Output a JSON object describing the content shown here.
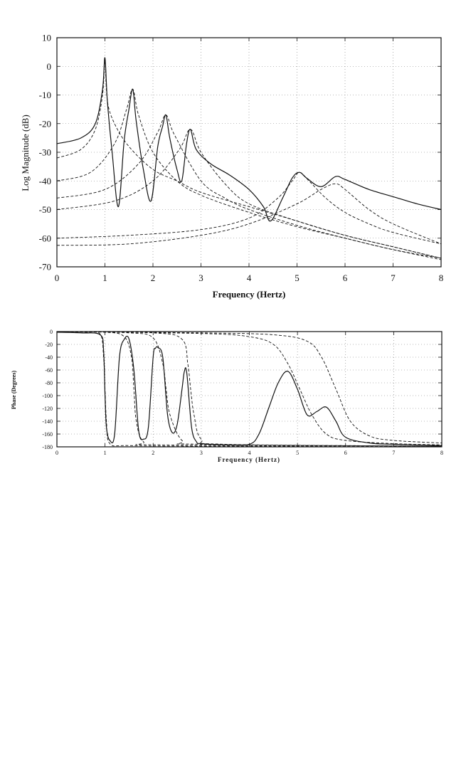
{
  "chart_data": [
    {
      "type": "line",
      "xlabel": "Frequency  (Hertz)",
      "ylabel": "Log Magnitude  (dB)",
      "xlim": [
        0,
        8
      ],
      "ylim": [
        -70,
        10
      ],
      "xticks": [
        "0",
        "1",
        "2",
        "3",
        "4",
        "5",
        "6",
        "7",
        "8"
      ],
      "yticks": [
        "10",
        "0",
        "-10",
        "-20",
        "-30",
        "-40",
        "-50",
        "-60",
        "-70"
      ],
      "grid": true,
      "series": [
        {
          "style": "solid",
          "color": "#111111",
          "x": [
            0,
            0.5,
            0.8,
            0.95,
            1.0,
            1.05,
            1.15,
            1.28,
            1.4,
            1.5,
            1.58,
            1.65,
            1.8,
            1.96,
            2.1,
            2.2,
            2.27,
            2.35,
            2.5,
            2.6,
            2.7,
            2.78,
            2.9,
            3.2,
            3.6,
            4.0,
            4.3,
            4.45,
            4.7,
            4.9,
            5.05,
            5.2,
            5.5,
            5.8,
            6.0,
            6.5,
            7.0,
            7.5,
            8.0
          ],
          "y": [
            -27,
            -25,
            -20,
            -8,
            3,
            -12,
            -30,
            -49,
            -26,
            -15,
            -8,
            -19,
            -36,
            -47,
            -28,
            -21,
            -17,
            -25,
            -36,
            -40,
            -27,
            -22,
            -29,
            -34,
            -38,
            -43,
            -49,
            -54,
            -46,
            -39,
            -37,
            -39,
            -42,
            -38.5,
            -39.5,
            -43,
            -45.5,
            -48,
            -50
          ]
        },
        {
          "style": "dashed",
          "color": "#111111",
          "x": [
            0,
            0.5,
            0.8,
            0.95,
            1.0,
            1.05,
            1.2,
            1.5,
            2.0,
            2.5,
            3.0,
            4.0,
            5.0,
            6.0,
            7.0,
            8.0
          ],
          "y": [
            -32,
            -29,
            -22,
            -10,
            2,
            -12,
            -20,
            -28,
            -36,
            -40,
            -44,
            -49,
            -54,
            -59,
            -63,
            -67
          ]
        },
        {
          "style": "dashed",
          "color": "#111111",
          "x": [
            0,
            0.7,
            1.2,
            1.45,
            1.58,
            1.7,
            2.0,
            2.5,
            3.0,
            4.0,
            5.0,
            6.0,
            7.0,
            8.0
          ],
          "y": [
            -40,
            -37,
            -27,
            -15,
            -8,
            -17,
            -30,
            -40,
            -45,
            -51,
            -56,
            -60,
            -64,
            -67
          ]
        },
        {
          "style": "dashed",
          "color": "#111111",
          "x": [
            0,
            1.0,
            1.7,
            2.1,
            2.27,
            2.45,
            3.0,
            3.5,
            4.0,
            5.0,
            6.0,
            7.0,
            8.0
          ],
          "y": [
            -46,
            -43,
            -34,
            -23,
            -17,
            -24,
            -40,
            -46,
            -50,
            -55.5,
            -60,
            -64,
            -67.5
          ]
        },
        {
          "style": "dashed",
          "color": "#111111",
          "x": [
            0,
            1.2,
            2.0,
            2.55,
            2.78,
            3.0,
            3.5,
            4.0,
            5.0,
            6.0,
            7.0,
            8.0
          ],
          "y": [
            -50,
            -47,
            -40,
            -29,
            -22,
            -30,
            -41,
            -48,
            -54,
            -59,
            -63,
            -67
          ]
        },
        {
          "style": "dashed",
          "color": "#111111",
          "x": [
            0,
            1.5,
            3.0,
            4.0,
            4.6,
            4.9,
            5.05,
            5.25,
            5.6,
            6.0,
            6.5,
            7.0,
            8.0
          ],
          "y": [
            -60,
            -59,
            -57,
            -53,
            -46,
            -40,
            -37,
            -40,
            -46,
            -51,
            -55,
            -58,
            -62
          ]
        },
        {
          "style": "dashed",
          "color": "#111111",
          "x": [
            0,
            1.5,
            3.0,
            4.0,
            5.0,
            5.5,
            5.8,
            6.0,
            6.5,
            7.0,
            8.0
          ],
          "y": [
            -62.5,
            -62,
            -59,
            -55,
            -48,
            -43,
            -41,
            -43,
            -50,
            -55,
            -62
          ]
        }
      ]
    },
    {
      "type": "line",
      "xlabel": "Frequency  (Hertz)",
      "ylabel": "Phase (Degrees)",
      "xlim": [
        0,
        8
      ],
      "ylim": [
        -180,
        0
      ],
      "xticks": [
        "0",
        "1",
        "2",
        "3",
        "4",
        "5",
        "6",
        "7",
        "8"
      ],
      "yticks": [
        "0",
        "-20",
        "-40",
        "-60",
        "-80",
        "-100",
        "-120",
        "-140",
        "-160",
        "-180"
      ],
      "grid": true,
      "series": [
        {
          "style": "solid",
          "color": "#111111",
          "x": [
            0,
            0.5,
            0.9,
            0.97,
            1.0,
            1.03,
            1.1,
            1.2,
            1.3,
            1.4,
            1.5,
            1.6,
            1.7,
            1.8,
            1.9,
            2.0,
            2.05,
            2.1,
            2.2,
            2.3,
            2.4,
            2.5,
            2.6,
            2.65,
            2.7,
            2.8,
            2.9,
            3.0,
            3.5,
            4.0,
            4.2,
            4.4,
            4.6,
            4.8,
            5.0,
            5.2,
            5.4,
            5.6,
            5.8,
            6.0,
            6.5,
            7.0,
            8.0
          ],
          "y": [
            -1,
            -2,
            -5,
            -30,
            -100,
            -150,
            -170,
            -160,
            -40,
            -12,
            -12,
            -60,
            -155,
            -168,
            -150,
            -40,
            -26,
            -25,
            -40,
            -130,
            -158,
            -145,
            -90,
            -62,
            -65,
            -150,
            -172,
            -175,
            -177,
            -176,
            -160,
            -120,
            -80,
            -62,
            -90,
            -130,
            -125,
            -118,
            -140,
            -165,
            -174,
            -176,
            -178
          ]
        },
        {
          "style": "dashed",
          "color": "#111111",
          "x": [
            0,
            0.6,
            0.9,
            0.97,
            1.0,
            1.03,
            1.1,
            1.5,
            3.0,
            8.0
          ],
          "y": [
            0,
            -1,
            -4,
            -40,
            -90,
            -140,
            -175,
            -178,
            -179,
            -180
          ]
        },
        {
          "style": "dashed",
          "color": "#111111",
          "x": [
            0,
            1.0,
            1.4,
            1.55,
            1.6,
            1.65,
            1.8,
            2.2,
            8.0
          ],
          "y": [
            0,
            -1,
            -8,
            -40,
            -90,
            -140,
            -172,
            -177,
            -179
          ]
        },
        {
          "style": "dashed",
          "color": "#111111",
          "x": [
            0,
            1.5,
            2.0,
            2.2,
            2.27,
            2.35,
            2.6,
            3.0,
            8.0
          ],
          "y": [
            0,
            -2,
            -10,
            -50,
            -90,
            -130,
            -170,
            -176,
            -179
          ]
        },
        {
          "style": "dashed",
          "color": "#111111",
          "x": [
            0,
            2.0,
            2.6,
            2.72,
            2.78,
            2.85,
            3.0,
            3.5,
            8.0
          ],
          "y": [
            0,
            -2,
            -12,
            -50,
            -90,
            -130,
            -168,
            -176,
            -179
          ]
        },
        {
          "style": "dashed",
          "color": "#111111",
          "x": [
            0,
            3.0,
            4.0,
            4.5,
            4.8,
            5.05,
            5.3,
            5.6,
            6.0,
            7.0,
            8.0
          ],
          "y": [
            0,
            -3,
            -8,
            -20,
            -50,
            -90,
            -130,
            -160,
            -170,
            -175,
            -177
          ]
        },
        {
          "style": "dashed",
          "color": "#111111",
          "x": [
            0,
            3.0,
            4.5,
            5.2,
            5.5,
            5.8,
            6.1,
            6.5,
            7.0,
            8.0
          ],
          "y": [
            0,
            -2,
            -5,
            -15,
            -40,
            -90,
            -140,
            -163,
            -170,
            -174
          ]
        }
      ]
    }
  ]
}
